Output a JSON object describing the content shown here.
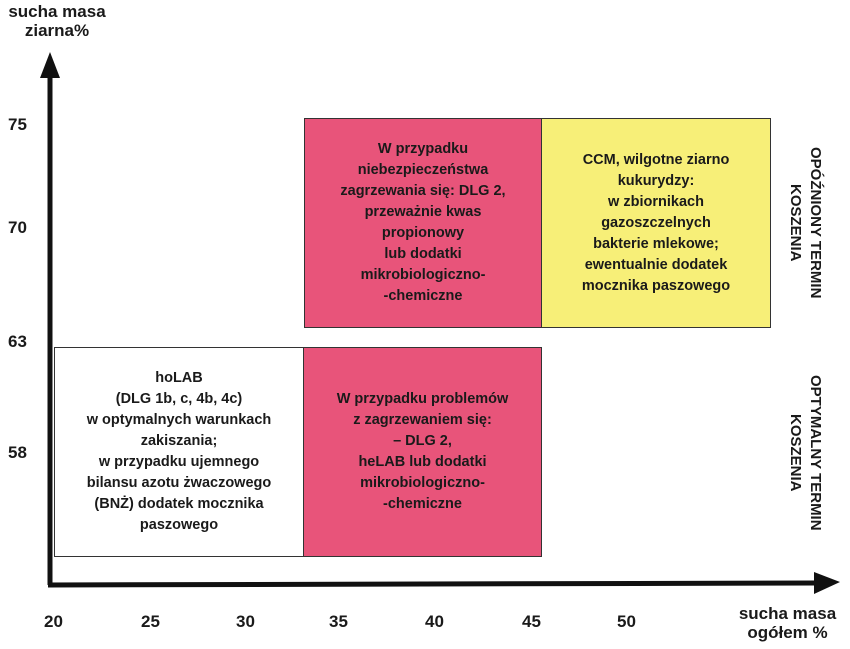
{
  "y_axis": {
    "label_line1": "sucha masa",
    "label_line2": "ziarna%",
    "ticks": [
      "75",
      "70",
      "63",
      "58"
    ]
  },
  "x_axis": {
    "label_line1": "sucha masa",
    "label_line2": "ogółem %",
    "ticks": [
      "20",
      "25",
      "30",
      "35",
      "40",
      "45",
      "50"
    ]
  },
  "boxes": {
    "upper_middle": {
      "color": "#e8547a",
      "lines": [
        "W przypadku",
        "niebezpieczeństwa",
        "zagrzewania się: DLG 2,",
        "przeważnie kwas",
        "propionowy",
        "lub dodatki",
        "mikrobiologiczno-",
        "-chemiczne"
      ]
    },
    "upper_right": {
      "color": "#f7ef78",
      "lines": [
        "CCM, wilgotne ziarno",
        "kukurydzy:",
        "w zbiornikach",
        "gazoszczelnych",
        "bakterie mlekowe;",
        "ewentualnie dodatek",
        "mocznika paszowego"
      ]
    },
    "lower_left": {
      "color": "#ffffff",
      "lines": [
        "hoLAB",
        "(DLG 1b, c, 4b, 4c)",
        "w optymalnych warunkach",
        "zakiszania;",
        "w przypadku ujemnego",
        "bilansu azotu żwaczowego",
        "(BNŻ) dodatek mocznika",
        "paszowego"
      ]
    },
    "lower_middle": {
      "color": "#e8547a",
      "lines": [
        "W przypadku problemów",
        "z zagrzewaniem się:",
        "– DLG 2,",
        "heLAB lub dodatki",
        "mikrobiologiczno-",
        "-chemiczne"
      ]
    }
  },
  "side_labels": {
    "delayed": {
      "line1": "OPÓŹNIONY TERMIN",
      "line2": "KOSZENIA"
    },
    "optimal": {
      "line1": "OPTYMALNY TERMIN",
      "line2": "KOSZENIA"
    }
  }
}
